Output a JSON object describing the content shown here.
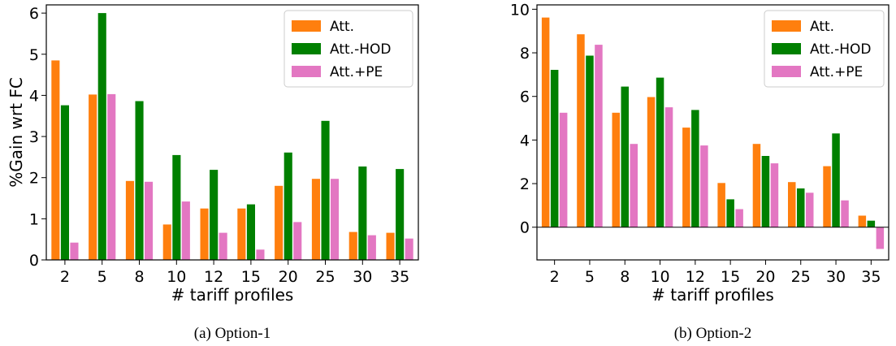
{
  "colors": {
    "Att.": "#ff7f0e",
    "Att.-HOD": "#008000",
    "Att.+PE": "#e377c2"
  },
  "chart_data": [
    {
      "type": "bar",
      "caption": "(a) Option-1",
      "xlabel": "# tariff profiles",
      "ylabel": "%Gain wrt FC",
      "categories": [
        "2",
        "5",
        "8",
        "10",
        "12",
        "15",
        "20",
        "25",
        "30",
        "35"
      ],
      "ylim": [
        0,
        6.2
      ],
      "yticks": [
        "0",
        "1",
        "2",
        "3",
        "4",
        "5",
        "6"
      ],
      "legend_position": "top-right",
      "series": [
        {
          "name": "Att.",
          "values": [
            4.85,
            4.02,
            1.92,
            0.86,
            1.25,
            1.25,
            1.8,
            1.97,
            0.68,
            0.66
          ]
        },
        {
          "name": "Att.-HOD",
          "values": [
            3.76,
            6.0,
            3.86,
            2.55,
            2.19,
            1.35,
            2.61,
            3.38,
            2.27,
            2.21
          ]
        },
        {
          "name": "Att.+PE",
          "values": [
            0.42,
            4.03,
            1.9,
            1.42,
            0.66,
            0.25,
            0.92,
            1.97,
            0.6,
            0.52
          ]
        }
      ]
    },
    {
      "type": "bar",
      "caption": "(b) Option-2",
      "xlabel": "# tariff profiles",
      "ylabel": "",
      "categories": [
        "2",
        "5",
        "8",
        "10",
        "12",
        "15",
        "20",
        "25",
        "30",
        "35"
      ],
      "ylim": [
        -1.5,
        10.2
      ],
      "yticks": [
        "0",
        "2",
        "4",
        "6",
        "8",
        "10"
      ],
      "zero_line": true,
      "legend_position": "top-right",
      "series": [
        {
          "name": "Att.",
          "values": [
            9.62,
            8.85,
            5.25,
            5.97,
            4.57,
            2.03,
            3.82,
            2.07,
            2.8,
            0.53
          ]
        },
        {
          "name": "Att.-HOD",
          "values": [
            7.22,
            7.87,
            6.45,
            6.86,
            5.38,
            1.28,
            3.27,
            1.78,
            4.3,
            0.3
          ]
        },
        {
          "name": "Att.+PE",
          "values": [
            5.25,
            8.37,
            3.82,
            5.5,
            3.75,
            0.83,
            2.93,
            1.58,
            1.23,
            -1.0
          ]
        }
      ]
    }
  ]
}
